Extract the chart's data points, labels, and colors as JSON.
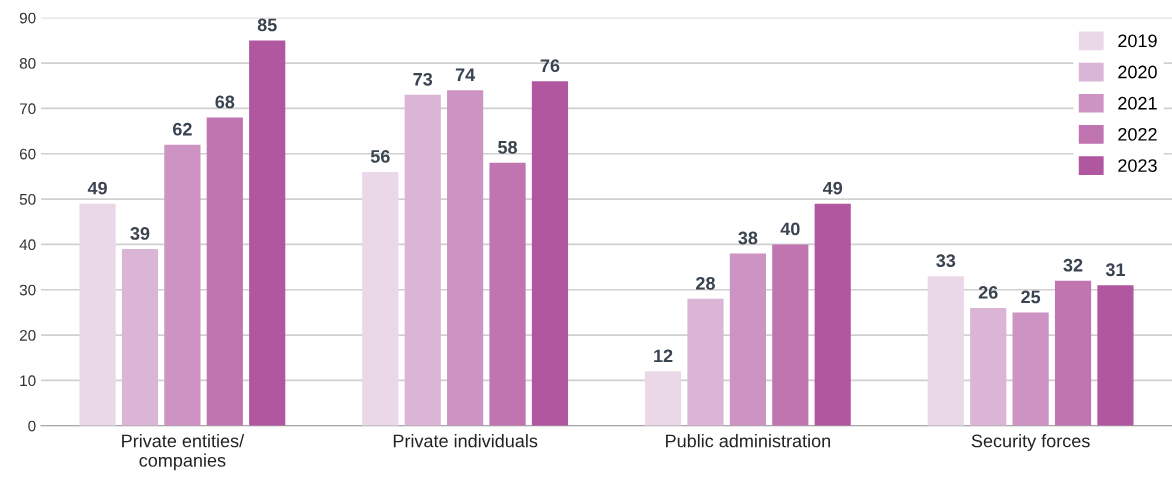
{
  "chart_data": {
    "type": "bar",
    "categories": [
      "Private entities/\ncompanies",
      "Private individuals",
      "Public administration",
      "Security forces"
    ],
    "series": [
      {
        "name": "2019",
        "color": "#ead8e8",
        "values": [
          49,
          56,
          12,
          33
        ]
      },
      {
        "name": "2020",
        "color": "#dbb5d6",
        "values": [
          39,
          73,
          28,
          26
        ]
      },
      {
        "name": "2021",
        "color": "#cc93c3",
        "values": [
          62,
          74,
          38,
          25
        ]
      },
      {
        "name": "2022",
        "color": "#c075b1",
        "values": [
          68,
          58,
          40,
          32
        ]
      },
      {
        "name": "2023",
        "color": "#b1579f",
        "values": [
          85,
          76,
          49,
          31
        ]
      }
    ],
    "ylim": [
      0,
      90
    ],
    "yticks": [
      0,
      10,
      20,
      30,
      40,
      50,
      60,
      70,
      80,
      90
    ],
    "grid": "y",
    "legend": "top right",
    "data_labels": true
  }
}
